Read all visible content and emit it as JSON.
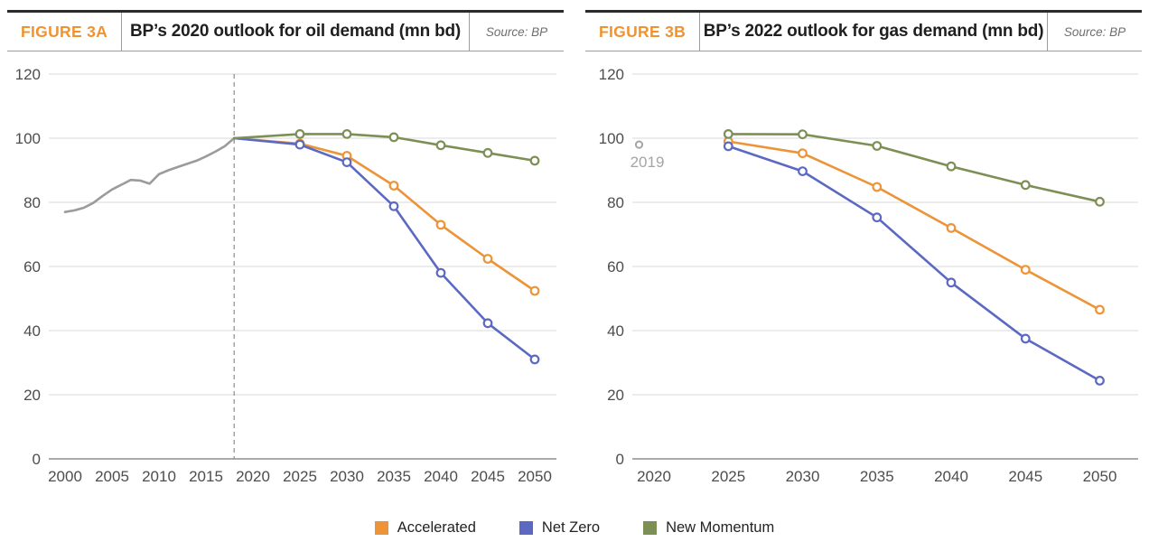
{
  "figures": [
    {
      "label": "FIGURE 3A",
      "title": "BP’s 2020 outlook for oil demand (mn bd)",
      "source": "Source: BP"
    },
    {
      "label": "FIGURE 3B",
      "title": "BP’s 2022 outlook for gas demand (mn bd)",
      "source": "Source: BP"
    }
  ],
  "legend": {
    "items": [
      {
        "label": "Accelerated",
        "color": "#ED9338"
      },
      {
        "label": "Net Zero",
        "color": "#5B69C3"
      },
      {
        "label": "New Momentum",
        "color": "#7C8F55"
      }
    ]
  },
  "colors": {
    "accent_orange": "#EF9330",
    "series_accelerated": "#ED9338",
    "series_net_zero": "#5B69C3",
    "series_new_momentum": "#7C8F55",
    "history_gray": "#9B9B9B",
    "annotation_gray": "#A5A5A5",
    "grid": "#D9D9D9",
    "axis_baseline": "#ABABAB",
    "tick_text": "#4D4D4F"
  },
  "chart_data": [
    {
      "type": "line",
      "title": "BP’s 2020 outlook for oil demand (mn bd)",
      "xlabel": "",
      "ylabel": "",
      "x_ticks": [
        2000,
        2005,
        2010,
        2015,
        2020,
        2025,
        2030,
        2035,
        2040,
        2045,
        2050
      ],
      "y_ticks": [
        0,
        20,
        40,
        60,
        80,
        100,
        120
      ],
      "ylim": [
        0,
        120
      ],
      "xlim": [
        2000,
        2050
      ],
      "grid": true,
      "legend_position": "bottom",
      "dashed_vline_year": 2018,
      "markers_start_year": 2020,
      "history": {
        "color": "#9B9B9B",
        "x": [
          2000,
          2001,
          2002,
          2003,
          2004,
          2005,
          2006,
          2007,
          2008,
          2009,
          2010,
          2011,
          2012,
          2013,
          2014,
          2015,
          2016,
          2017,
          2018
        ],
        "y": [
          77.0,
          77.5,
          78.3,
          79.8,
          82.0,
          84.0,
          85.5,
          87.0,
          86.8,
          85.8,
          88.8,
          90.0,
          91.0,
          92.0,
          93.0,
          94.3,
          95.8,
          97.5,
          100.0
        ]
      },
      "series": [
        {
          "name": "Accelerated",
          "color": "#ED9338",
          "x": [
            2018,
            2025,
            2030,
            2035,
            2040,
            2045,
            2050
          ],
          "y": [
            100,
            98.3,
            94.5,
            85.2,
            73.0,
            62.4,
            52.4
          ]
        },
        {
          "name": "Net Zero",
          "color": "#5B69C3",
          "x": [
            2018,
            2025,
            2030,
            2035,
            2040,
            2045,
            2050
          ],
          "y": [
            100,
            98.0,
            92.5,
            78.8,
            58.0,
            42.3,
            31.0
          ]
        },
        {
          "name": "New Momentum",
          "color": "#7C8F55",
          "x": [
            2018,
            2025,
            2030,
            2035,
            2040,
            2045,
            2050
          ],
          "y": [
            100,
            101.3,
            101.3,
            100.3,
            97.8,
            95.4,
            93.0
          ]
        }
      ]
    },
    {
      "type": "line",
      "title": "BP’s 2022 outlook for gas demand (mn bd)",
      "xlabel": "",
      "ylabel": "",
      "x_ticks": [
        2020,
        2025,
        2030,
        2035,
        2040,
        2045,
        2050
      ],
      "y_ticks": [
        0,
        20,
        40,
        60,
        80,
        100,
        120
      ],
      "ylim": [
        0,
        120
      ],
      "xlim": [
        2020,
        2050
      ],
      "grid": true,
      "legend_position": "bottom",
      "markers_start_year": 2020,
      "annotation_point": {
        "label": "2019",
        "x": 2019,
        "y": 98.0,
        "color": "#A5A5A5"
      },
      "series": [
        {
          "name": "Accelerated",
          "color": "#ED9338",
          "x": [
            2025,
            2030,
            2035,
            2040,
            2045,
            2050
          ],
          "y": [
            99.0,
            95.3,
            84.8,
            72.0,
            59.0,
            46.5
          ]
        },
        {
          "name": "Net Zero",
          "color": "#5B69C3",
          "x": [
            2025,
            2030,
            2035,
            2040,
            2045,
            2050
          ],
          "y": [
            97.5,
            89.7,
            75.3,
            55.0,
            37.5,
            24.4
          ]
        },
        {
          "name": "New Momentum",
          "color": "#7C8F55",
          "x": [
            2025,
            2030,
            2035,
            2040,
            2045,
            2050
          ],
          "y": [
            101.3,
            101.2,
            97.6,
            91.2,
            85.4,
            80.2
          ]
        }
      ]
    }
  ]
}
